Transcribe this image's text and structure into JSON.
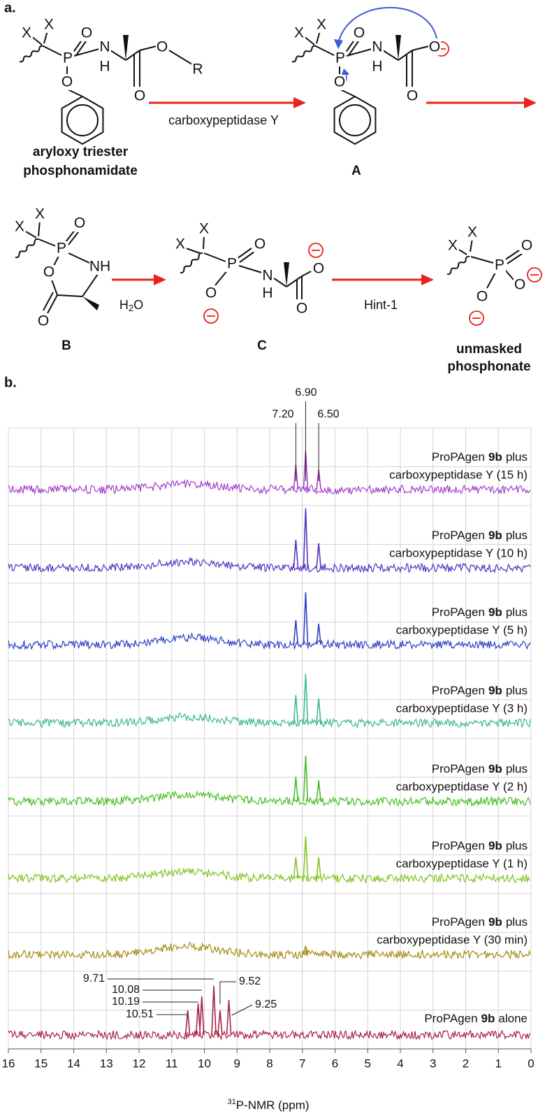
{
  "scheme": {
    "label": "a.",
    "s1": {
      "atoms": [
        "X",
        "X",
        "O",
        "P",
        "N",
        "H",
        "O",
        "O",
        "R",
        "O"
      ],
      "caption": [
        "aryloxy triester",
        "phosphonamidate"
      ]
    },
    "arrow1": "carboxypeptidase Y",
    "sA": {
      "atoms": [
        "X",
        "X",
        "O",
        "P",
        "N",
        "H",
        "O",
        "O",
        "O"
      ],
      "caption": "A"
    },
    "sB": {
      "atoms": [
        "X",
        "X",
        "O",
        "P",
        "NH",
        "O",
        "O"
      ],
      "caption": "B"
    },
    "arrow2": [
      "H",
      "2",
      "O"
    ],
    "sC": {
      "atoms": [
        "X",
        "X",
        "O",
        "P",
        "N",
        "H",
        "O",
        "O",
        "O"
      ],
      "caption": "C"
    },
    "arrow3": "Hint-1",
    "sD": {
      "atoms": [
        "X",
        "X",
        "O",
        "P",
        "O",
        "O"
      ],
      "caption": [
        "unmasked",
        "phosphonate"
      ]
    }
  },
  "chart_data": {
    "type": "spectrum",
    "panel_label": "b.",
    "xlabel": [
      "31",
      "P-NMR (ppm)"
    ],
    "xlim": [
      16,
      0
    ],
    "xticks": [
      16,
      15,
      14,
      13,
      12,
      11,
      10,
      9,
      8,
      7,
      6,
      5,
      4,
      3,
      2,
      1,
      0
    ],
    "grid": true,
    "hump_ppm": 10.5,
    "series": [
      {
        "name_line1": [
          "ProPAgen",
          "9b",
          "plus"
        ],
        "name_line2": "carboxypeptidase Y (15 h)",
        "color": "#a23fc8",
        "peaks_ppm": [
          7.2,
          6.9,
          6.5
        ],
        "peaks_height": [
          35,
          55,
          28
        ],
        "hump_height": 8
      },
      {
        "name_line1": [
          "ProPAgen",
          "9b",
          "plus"
        ],
        "name_line2": "carboxypeptidase Y (10 h)",
        "color": "#5531c2",
        "peaks_ppm": [
          7.2,
          6.9,
          6.5
        ],
        "peaks_height": [
          40,
          85,
          35
        ],
        "hump_height": 9
      },
      {
        "name_line1": [
          "ProPAgen",
          "9b",
          "plus"
        ],
        "name_line2": "carboxypeptidase Y (5 h)",
        "color": "#2b42c4",
        "peaks_ppm": [
          7.2,
          6.9,
          6.5
        ],
        "peaks_height": [
          35,
          75,
          30
        ],
        "hump_height": 10
      },
      {
        "name_line1": [
          "ProPAgen",
          "9b",
          "plus"
        ],
        "name_line2": "carboxypeptidase Y (3 h)",
        "color": "#3fb896",
        "peaks_ppm": [
          7.2,
          6.9,
          6.5
        ],
        "peaks_height": [
          40,
          70,
          35
        ],
        "hump_height": 9
      },
      {
        "name_line1": [
          "ProPAgen",
          "9b",
          "plus"
        ],
        "name_line2": "carboxypeptidase Y (2 h)",
        "color": "#46be24",
        "peaks_ppm": [
          7.2,
          6.9,
          6.5
        ],
        "peaks_height": [
          35,
          65,
          30
        ],
        "hump_height": 10
      },
      {
        "name_line1": [
          "ProPAgen",
          "9b",
          "plus"
        ],
        "name_line2": "carboxypeptidase Y (1 h)",
        "color": "#80c524",
        "peaks_ppm": [
          7.2,
          6.9,
          6.5
        ],
        "peaks_height": [
          30,
          60,
          30
        ],
        "hump_height": 9
      },
      {
        "name_line1": [
          "ProPAgen",
          "9b",
          "plus"
        ],
        "name_line2": "carboxypeptidase Y (30 min)",
        "color": "#a48a12",
        "peaks_ppm": [
          6.9
        ],
        "peaks_height": [
          12
        ],
        "hump_height": 12
      },
      {
        "name_line1": [
          "ProPAgen",
          "9b",
          "alone"
        ],
        "color": "#a52246",
        "peaks_ppm": [
          10.51,
          10.19,
          10.08,
          9.71,
          9.52,
          9.25
        ],
        "peaks_height": [
          35,
          45,
          55,
          70,
          35,
          50
        ],
        "hump_height": 0
      }
    ],
    "top_peak_labels": [
      {
        "value": 7.2,
        "label": "7.20"
      },
      {
        "value": 6.9,
        "label": "6.90"
      },
      {
        "value": 6.5,
        "label": "6.50"
      }
    ],
    "bottom_peak_labels": [
      {
        "value": 9.71,
        "label": "9.71"
      },
      {
        "value": 10.08,
        "label": "10.08"
      },
      {
        "value": 10.19,
        "label": "10.19"
      },
      {
        "value": 10.51,
        "label": "10.51"
      },
      {
        "value": 9.52,
        "label": "9.52"
      },
      {
        "value": 9.25,
        "label": "9.25"
      }
    ]
  }
}
